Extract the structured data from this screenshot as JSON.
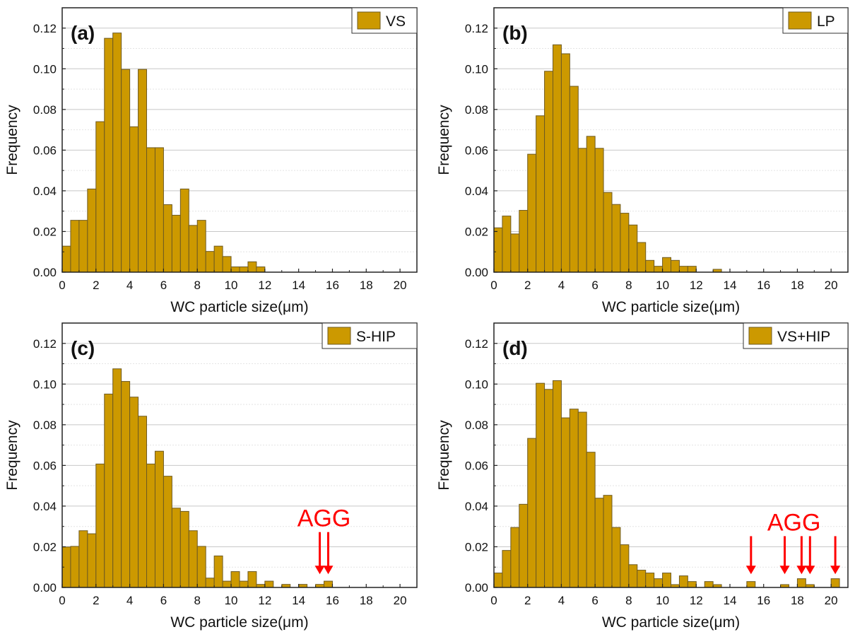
{
  "chart_data": [
    {
      "type": "bar",
      "panel_label": "(a)",
      "legend": [
        "VS"
      ],
      "legend_placement": "top-right",
      "xlabel": "WC particle size(μm)",
      "ylabel": "Frequency",
      "xlim": [
        0,
        21
      ],
      "ylim": [
        0,
        0.13
      ],
      "xticks": [
        "0",
        "2",
        "4",
        "6",
        "8",
        "10",
        "12",
        "14",
        "16",
        "18",
        "20"
      ],
      "yticks": [
        "0.00",
        "0.02",
        "0.04",
        "0.06",
        "0.08",
        "0.10",
        "0.12"
      ],
      "grid": true,
      "bin_width": 0.5,
      "bin_start": 0,
      "series": [
        {
          "name": "VS",
          "values": [
            0.0128,
            0.0255,
            0.0255,
            0.0409,
            0.074,
            0.115,
            0.1176,
            0.0997,
            0.0715,
            0.0997,
            0.0612,
            0.0612,
            0.0332,
            0.028,
            0.0409,
            0.023,
            0.0255,
            0.0102,
            0.0128,
            0.0077,
            0.0026,
            0.0026,
            0.0051,
            0.0026
          ]
        }
      ],
      "annotation": null
    },
    {
      "type": "bar",
      "panel_label": "(b)",
      "legend": [
        "LP"
      ],
      "legend_placement": "top-right",
      "xlabel": "WC particle size(μm)",
      "ylabel": "Frequency",
      "xlim": [
        0,
        21
      ],
      "ylim": [
        0,
        0.13
      ],
      "xticks": [
        "0",
        "2",
        "4",
        "6",
        "8",
        "10",
        "12",
        "14",
        "16",
        "18",
        "20"
      ],
      "yticks": [
        "0.00",
        "0.02",
        "0.04",
        "0.06",
        "0.08",
        "0.10",
        "0.12"
      ],
      "grid": true,
      "bin_width": 0.5,
      "bin_start": 0,
      "series": [
        {
          "name": "LP",
          "values": [
            0.0218,
            0.0276,
            0.0188,
            0.0304,
            0.058,
            0.0769,
            0.0988,
            0.1118,
            0.1074,
            0.0914,
            0.0609,
            0.0668,
            0.0609,
            0.0392,
            0.0333,
            0.029,
            0.0232,
            0.0146,
            0.0058,
            0.0029,
            0.0072,
            0.0058,
            0.0029,
            0.0029,
            0,
            0,
            0.0014
          ]
        }
      ],
      "annotation": null
    },
    {
      "type": "bar",
      "panel_label": "(c)",
      "legend": [
        "S-HIP"
      ],
      "legend_placement": "top-right",
      "xlabel": "WC particle size(μm)",
      "ylabel": "Frequency",
      "xlim": [
        0,
        21
      ],
      "ylim": [
        0,
        0.13
      ],
      "xticks": [
        "0",
        "2",
        "4",
        "6",
        "8",
        "10",
        "12",
        "14",
        "16",
        "18",
        "20"
      ],
      "yticks": [
        "0.00",
        "0.02",
        "0.04",
        "0.06",
        "0.08",
        "0.10",
        "0.12"
      ],
      "grid": true,
      "bin_width": 0.5,
      "bin_start": 0,
      "series": [
        {
          "name": "S-HIP",
          "values": [
            0.0199,
            0.0202,
            0.0279,
            0.0264,
            0.0607,
            0.0951,
            0.1075,
            0.1013,
            0.0936,
            0.0842,
            0.0607,
            0.067,
            0.0547,
            0.039,
            0.0374,
            0.0279,
            0.0202,
            0.0046,
            0.0155,
            0.0031,
            0.0078,
            0.0031,
            0.0078,
            0.0015,
            0.0031,
            0,
            0.0015,
            0,
            0.0015,
            0,
            0.0015,
            0.0031
          ]
        }
      ],
      "annotation": {
        "text": "AGG",
        "color": "#ff0000",
        "arrows_x": [
          15.25,
          15.75
        ]
      }
    },
    {
      "type": "bar",
      "panel_label": "(d)",
      "legend": [
        "VS+HIP"
      ],
      "legend_placement": "top-right",
      "xlabel": "WC particle size(μm)",
      "ylabel": "Frequency",
      "xlim": [
        0,
        21
      ],
      "ylim": [
        0,
        0.13
      ],
      "xticks": [
        "0",
        "2",
        "4",
        "6",
        "8",
        "10",
        "12",
        "14",
        "16",
        "18",
        "20"
      ],
      "yticks": [
        "0.00",
        "0.02",
        "0.04",
        "0.06",
        "0.08",
        "0.10",
        "0.12"
      ],
      "grid": true,
      "bin_width": 0.5,
      "bin_start": 0,
      "series": [
        {
          "name": "VS+HIP",
          "values": [
            0.0071,
            0.0182,
            0.0295,
            0.0409,
            0.0733,
            0.1004,
            0.0974,
            0.1017,
            0.0834,
            0.0877,
            0.0862,
            0.0665,
            0.0439,
            0.0453,
            0.0295,
            0.021,
            0.0112,
            0.0085,
            0.0071,
            0.0043,
            0.0071,
            0.0014,
            0.0057,
            0.0029,
            0,
            0.0029,
            0.0014,
            0,
            0,
            0,
            0.0029,
            0,
            0,
            0,
            0.0014,
            0,
            0.0043,
            0.0014,
            0,
            0,
            0.0043
          ]
        }
      ],
      "annotation": {
        "text": "AGG",
        "color": "#ff0000",
        "arrows_x": [
          15.25,
          17.25,
          18.25,
          18.75,
          20.25
        ]
      }
    }
  ],
  "colors": {
    "bar_fill": "#cc9900",
    "bar_stroke": "#6e5a22",
    "annotation": "#ff0000"
  }
}
